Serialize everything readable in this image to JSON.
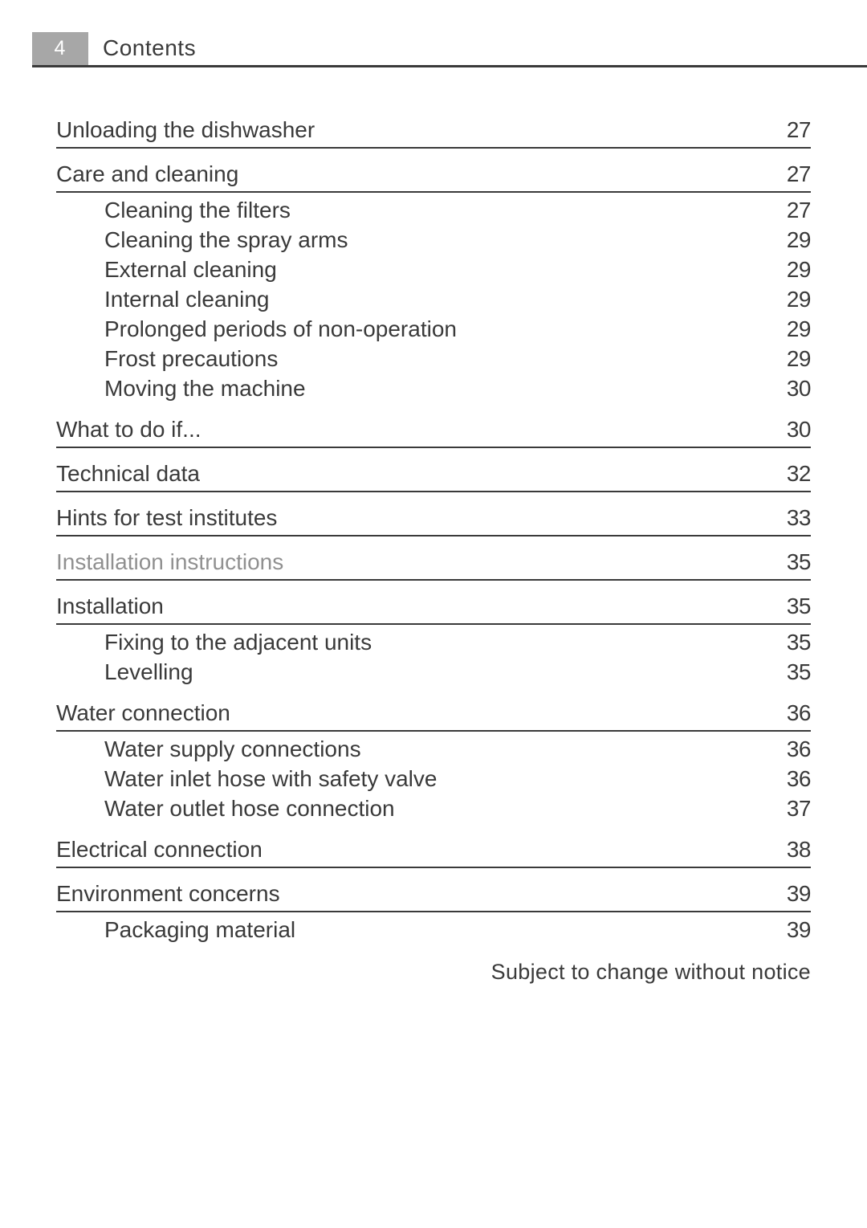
{
  "header": {
    "page_number": "4",
    "section": "Contents"
  },
  "toc": [
    {
      "type": "head",
      "label": "Unloading the dishwasher",
      "page": "27",
      "first": true
    },
    {
      "type": "head",
      "label": "Care and cleaning",
      "page": "27"
    },
    {
      "type": "sub",
      "label": "Cleaning the filters",
      "page": "27"
    },
    {
      "type": "sub",
      "label": "Cleaning the spray arms",
      "page": "29"
    },
    {
      "type": "sub",
      "label": "External cleaning",
      "page": "29"
    },
    {
      "type": "sub",
      "label": "Internal cleaning",
      "page": "29"
    },
    {
      "type": "sub",
      "label": "Prolonged periods of non-operation",
      "page": "29"
    },
    {
      "type": "sub",
      "label": "Frost precautions",
      "page": "29"
    },
    {
      "type": "sub",
      "label": "Moving the machine",
      "page": "30"
    },
    {
      "type": "head",
      "label": "What to do if...",
      "page": "30"
    },
    {
      "type": "head",
      "label": "Technical data",
      "page": "32"
    },
    {
      "type": "head",
      "label": "Hints for test institutes",
      "page": "33"
    },
    {
      "type": "head",
      "label": "Installation instructions",
      "page": "35",
      "grey": true
    },
    {
      "type": "head",
      "label": "Installation",
      "page": "35"
    },
    {
      "type": "sub",
      "label": "Fixing to the adjacent units",
      "page": "35"
    },
    {
      "type": "sub",
      "label": "Levelling",
      "page": "35"
    },
    {
      "type": "head",
      "label": "Water connection",
      "page": "36"
    },
    {
      "type": "sub",
      "label": "Water supply connections",
      "page": "36"
    },
    {
      "type": "sub",
      "label": "Water inlet hose with safety valve",
      "page": "36"
    },
    {
      "type": "sub",
      "label": "Water outlet hose connection",
      "page": "37"
    },
    {
      "type": "head",
      "label": "Electrical connection",
      "page": "38"
    },
    {
      "type": "head",
      "label": "Environment concerns",
      "page": "39"
    },
    {
      "type": "sub",
      "label": "Packaging material",
      "page": "39"
    }
  ],
  "footer_note": "Subject to change without notice"
}
